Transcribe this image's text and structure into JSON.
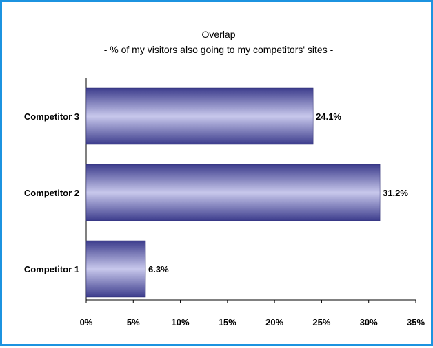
{
  "chart_data": {
    "type": "bar",
    "orientation": "horizontal",
    "title": "Overlap",
    "subtitle": "- %  of my visitors also going to my competitors' sites -",
    "categories": [
      "Competitor 3",
      "Competitor 2",
      "Competitor 1"
    ],
    "values": [
      24.1,
      31.2,
      6.3
    ],
    "value_labels": [
      "24.1%",
      "31.2%",
      "6.3%"
    ],
    "xlim": [
      0,
      35
    ],
    "x_ticks": [
      0,
      5,
      10,
      15,
      20,
      25,
      30,
      35
    ],
    "x_tick_labels": [
      "0%",
      "5%",
      "10%",
      "15%",
      "20%",
      "25%",
      "30%",
      "35%"
    ],
    "grid": false,
    "legend": "none",
    "colors": {
      "bar_light": "#c8c8ec",
      "bar_dark": "#3c3c8c",
      "border": "#1c93e0"
    }
  }
}
